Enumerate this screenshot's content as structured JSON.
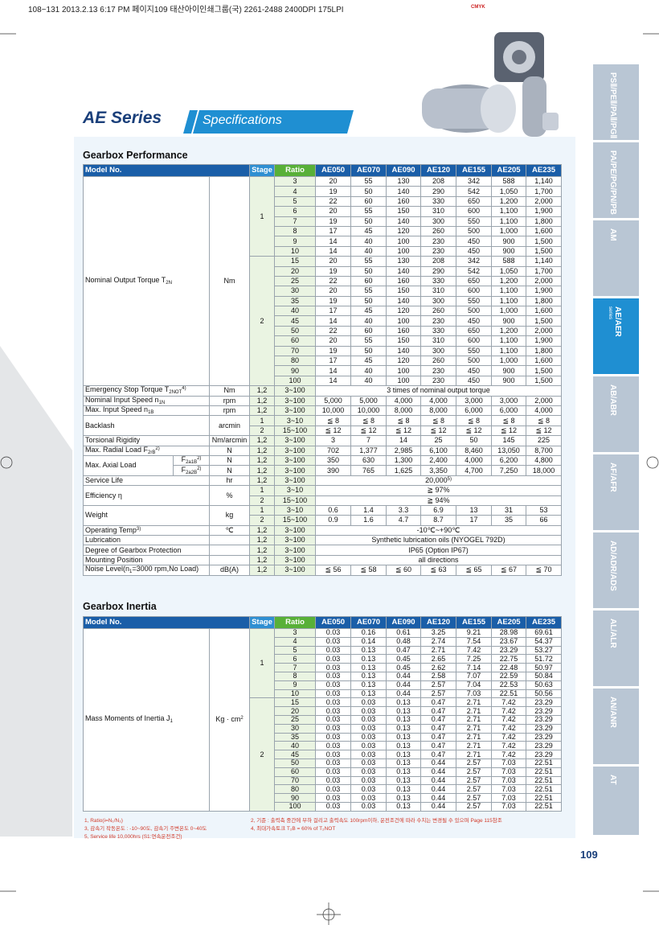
{
  "header": {
    "print_line": "108~131  2013.2.13 6:17 PM  페이지109  태산아이인쇄그룹(국) 2261-2488  2400DPI 175LPI",
    "cmyk": "CMYK",
    "series": "AE Series",
    "section": "Specifications"
  },
  "side_tabs": [
    {
      "label": "PSⅡ/PEⅡ/PAⅡ/PGⅡ"
    },
    {
      "label": "PA/PE/PG/PN/PB"
    },
    {
      "label": "AM"
    },
    {
      "label": "AE/AER",
      "sub": "series"
    },
    {
      "label": "AB/ABR"
    },
    {
      "label": "AF/AFR"
    },
    {
      "label": "AD/ADR/ADS"
    },
    {
      "label": "AL/ALR"
    },
    {
      "label": "AN/ANR"
    },
    {
      "label": "AT"
    }
  ],
  "performance": {
    "title": "Gearbox Performance",
    "headers": [
      "Model No.",
      "Stage",
      "Ratio",
      "AE050",
      "AE070",
      "AE090",
      "AE120",
      "AE155",
      "AE205",
      "AE235"
    ],
    "torque": {
      "label": {
        "text": "Nominal Output Torque T",
        "sub": "2N"
      },
      "unit": "Nm",
      "groups": [
        {
          "stage": "1",
          "rows": [
            {
              "ratio": "3",
              "values": [
                "20",
                "55",
                "130",
                "208",
                "342",
                "588",
                "1,140"
              ]
            },
            {
              "ratio": "4",
              "values": [
                "19",
                "50",
                "140",
                "290",
                "542",
                "1,050",
                "1,700"
              ]
            },
            {
              "ratio": "5",
              "values": [
                "22",
                "60",
                "160",
                "330",
                "650",
                "1,200",
                "2,000"
              ]
            },
            {
              "ratio": "6",
              "values": [
                "20",
                "55",
                "150",
                "310",
                "600",
                "1,100",
                "1,900"
              ]
            },
            {
              "ratio": "7",
              "values": [
                "19",
                "50",
                "140",
                "300",
                "550",
                "1,100",
                "1,800"
              ]
            },
            {
              "ratio": "8",
              "values": [
                "17",
                "45",
                "120",
                "260",
                "500",
                "1,000",
                "1,600"
              ]
            },
            {
              "ratio": "9",
              "values": [
                "14",
                "40",
                "100",
                "230",
                "450",
                "900",
                "1,500"
              ]
            },
            {
              "ratio": "10",
              "values": [
                "14",
                "40",
                "100",
                "230",
                "450",
                "900",
                "1,500"
              ]
            }
          ]
        },
        {
          "stage": "2",
          "rows": [
            {
              "ratio": "15",
              "values": [
                "20",
                "55",
                "130",
                "208",
                "342",
                "588",
                "1,140"
              ]
            },
            {
              "ratio": "20",
              "values": [
                "19",
                "50",
                "140",
                "290",
                "542",
                "1,050",
                "1,700"
              ]
            },
            {
              "ratio": "25",
              "values": [
                "22",
                "60",
                "160",
                "330",
                "650",
                "1,200",
                "2,000"
              ]
            },
            {
              "ratio": "30",
              "values": [
                "20",
                "55",
                "150",
                "310",
                "600",
                "1,100",
                "1,900"
              ]
            },
            {
              "ratio": "35",
              "values": [
                "19",
                "50",
                "140",
                "300",
                "550",
                "1,100",
                "1,800"
              ]
            },
            {
              "ratio": "40",
              "values": [
                "17",
                "45",
                "120",
                "260",
                "500",
                "1,000",
                "1,600"
              ]
            },
            {
              "ratio": "45",
              "values": [
                "14",
                "40",
                "100",
                "230",
                "450",
                "900",
                "1,500"
              ]
            },
            {
              "ratio": "50",
              "values": [
                "22",
                "60",
                "160",
                "330",
                "650",
                "1,200",
                "2,000"
              ]
            },
            {
              "ratio": "60",
              "values": [
                "20",
                "55",
                "150",
                "310",
                "600",
                "1,100",
                "1,900"
              ]
            },
            {
              "ratio": "70",
              "values": [
                "19",
                "50",
                "140",
                "300",
                "550",
                "1,100",
                "1,800"
              ]
            },
            {
              "ratio": "80",
              "values": [
                "17",
                "45",
                "120",
                "260",
                "500",
                "1,000",
                "1,600"
              ]
            },
            {
              "ratio": "90",
              "values": [
                "14",
                "40",
                "100",
                "230",
                "450",
                "900",
                "1,500"
              ]
            },
            {
              "ratio": "100",
              "values": [
                "14",
                "40",
                "100",
                "230",
                "450",
                "900",
                "1,500"
              ]
            }
          ]
        }
      ]
    },
    "rows": [
      {
        "label": {
          "text": "Emergency Stop Torque T",
          "sub": "2NOT",
          "sup": "4)"
        },
        "unit": "Nm",
        "lines": [
          {
            "stage": "1,2",
            "ratio": "3~100",
            "cells": [
              "3 times of nominal output torque"
            ]
          }
        ]
      },
      {
        "label": {
          "text": "Nominal Input Speed n",
          "sub": "1N"
        },
        "unit": "rpm",
        "lines": [
          {
            "stage": "1,2",
            "ratio": "3~100",
            "cells": [
              "5,000",
              "5,000",
              "4,000",
              "4,000",
              "3,000",
              "3,000",
              "2,000"
            ]
          }
        ]
      },
      {
        "label": {
          "text": "Max. Input Speed n",
          "sub": "1B"
        },
        "unit": "rpm",
        "lines": [
          {
            "stage": "1,2",
            "ratio": "3~100",
            "cells": [
              "10,000",
              "10,000",
              "8,000",
              "8,000",
              "6,000",
              "6,000",
              "4,000"
            ]
          }
        ]
      },
      {
        "label": "Backlash",
        "unit": "arcmin",
        "lines": [
          {
            "stage": "1",
            "ratio": "3~10",
            "cells": [
              "≦ 8",
              "≦ 8",
              "≦ 8",
              "≦ 8",
              "≦ 8",
              "≦ 8",
              "≦ 8"
            ]
          },
          {
            "stage": "2",
            "ratio": "15~100",
            "cells": [
              "≦ 12",
              "≦ 12",
              "≦ 12",
              "≦ 12",
              "≦ 12",
              "≦ 12",
              "≦ 12"
            ]
          }
        ]
      },
      {
        "label": "Torsional Rigidity",
        "unit": "Nm/arcmin",
        "lines": [
          {
            "stage": "1,2",
            "ratio": "3~100",
            "cells": [
              "3",
              "7",
              "14",
              "25",
              "50",
              "145",
              "225"
            ]
          }
        ]
      },
      {
        "label": {
          "text": "Max. Radial Load F",
          "sub": "2rB",
          "sup": "2)"
        },
        "unit": "N",
        "lines": [
          {
            "stage": "1,2",
            "ratio": "3~100",
            "cells": [
              "702",
              "1,377",
              "2,985",
              "6,100",
              "8,460",
              "13,050",
              "8,700"
            ]
          }
        ]
      },
      {
        "label": "Max. Axial Load",
        "lines": [
          {
            "sublabel": {
              "text": "F",
              "sub": "2a1B",
              "sup": "2)"
            },
            "unit": "N",
            "stage": "1,2",
            "ratio": "3~100",
            "cells": [
              "350",
              "630",
              "1,300",
              "2,400",
              "4,000",
              "6,200",
              "4,800"
            ]
          },
          {
            "sublabel": {
              "text": "F",
              "sub": "2a2B",
              "sup": "2)"
            },
            "unit": "N",
            "stage": "1,2",
            "ratio": "3~100",
            "cells": [
              "390",
              "765",
              "1,625",
              "3,350",
              "4,700",
              "7,250",
              "18,000"
            ]
          }
        ]
      },
      {
        "label": "Service Life",
        "unit": "hr",
        "lines": [
          {
            "stage": "1,2",
            "ratio": "3~100",
            "cells": [
              {
                "text": "20,000",
                "sup": "5)"
              }
            ]
          }
        ]
      },
      {
        "label": "Efficiency η",
        "unit": "%",
        "lines": [
          {
            "stage": "1",
            "ratio": "3~10",
            "cells": [
              "≧ 97%"
            ]
          },
          {
            "stage": "2",
            "ratio": "15~100",
            "cells": [
              "≧ 94%"
            ]
          }
        ]
      },
      {
        "label": "Weight",
        "unit": "kg",
        "lines": [
          {
            "stage": "1",
            "ratio": "3~10",
            "cells": [
              "0.6",
              "1.4",
              "3.3",
              "6.9",
              "13",
              "31",
              "53"
            ]
          },
          {
            "stage": "2",
            "ratio": "15~100",
            "cells": [
              "0.9",
              "1.6",
              "4.7",
              "8.7",
              "17",
              "35",
              "66"
            ]
          }
        ]
      },
      {
        "label": {
          "text": "Operating Temp",
          "sup": "3)"
        },
        "unit": "℃",
        "lines": [
          {
            "stage": "1,2",
            "ratio": "3~100",
            "cells": [
              "-10℃~+90℃"
            ]
          }
        ]
      },
      {
        "label": "Lubrication",
        "lines": [
          {
            "stage": "1,2",
            "ratio": "3~100",
            "cells": [
              "Synthetic lubrication oils (NYOGEL 792D)"
            ]
          }
        ]
      },
      {
        "label": "Degree of Gearbox Protection",
        "lines": [
          {
            "stage": "1,2",
            "ratio": "3~100",
            "cells": [
              "IP65 (Option IP67)"
            ]
          }
        ]
      },
      {
        "label": "Mounting Position",
        "lines": [
          {
            "stage": "1,2",
            "ratio": "3~100",
            "cells": [
              "all directions"
            ]
          }
        ]
      },
      {
        "label": {
          "text": "Noise Level(n",
          "sub": "1",
          "after": "=3000 rpm,No Load)"
        },
        "unit": "dB(A)",
        "lines": [
          {
            "stage": "1,2",
            "ratio": "3~100",
            "cells": [
              "≦ 56",
              "≦ 58",
              "≦ 60",
              "≦ 63",
              "≦ 65",
              "≦ 67",
              "≦ 70"
            ]
          }
        ]
      }
    ]
  },
  "inertia": {
    "title": "Gearbox Inertia",
    "headers": [
      "Model No.",
      "Stage",
      "Ratio",
      "AE050",
      "AE070",
      "AE090",
      "AE120",
      "AE155",
      "AE205",
      "AE235"
    ],
    "label": {
      "text": "Mass Moments of Inertia J",
      "sub": "1"
    },
    "unit": {
      "text": "Kg · cm",
      "sup": "2"
    },
    "groups": [
      {
        "stage": "1",
        "rows": [
          {
            "ratio": "3",
            "values": [
              "0.03",
              "0.16",
              "0.61",
              "3.25",
              "9.21",
              "28.98",
              "69.61"
            ]
          },
          {
            "ratio": "4",
            "values": [
              "0.03",
              "0.14",
              "0.48",
              "2.74",
              "7.54",
              "23.67",
              "54.37"
            ]
          },
          {
            "ratio": "5",
            "values": [
              "0.03",
              "0.13",
              "0.47",
              "2.71",
              "7.42",
              "23.29",
              "53.27"
            ]
          },
          {
            "ratio": "6",
            "values": [
              "0.03",
              "0.13",
              "0.45",
              "2.65",
              "7.25",
              "22.75",
              "51.72"
            ]
          },
          {
            "ratio": "7",
            "values": [
              "0.03",
              "0.13",
              "0.45",
              "2.62",
              "7.14",
              "22.48",
              "50.97"
            ]
          },
          {
            "ratio": "8",
            "values": [
              "0.03",
              "0.13",
              "0.44",
              "2.58",
              "7.07",
              "22.59",
              "50.84"
            ]
          },
          {
            "ratio": "9",
            "values": [
              "0.03",
              "0.13",
              "0.44",
              "2.57",
              "7.04",
              "22.53",
              "50.63"
            ]
          },
          {
            "ratio": "10",
            "values": [
              "0.03",
              "0.13",
              "0.44",
              "2.57",
              "7.03",
              "22.51",
              "50.56"
            ]
          }
        ]
      },
      {
        "stage": "2",
        "rows": [
          {
            "ratio": "15",
            "values": [
              "0.03",
              "0.03",
              "0.13",
              "0.47",
              "2.71",
              "7.42",
              "23.29"
            ]
          },
          {
            "ratio": "20",
            "values": [
              "0.03",
              "0.03",
              "0.13",
              "0.47",
              "2.71",
              "7.42",
              "23.29"
            ]
          },
          {
            "ratio": "25",
            "values": [
              "0.03",
              "0.03",
              "0.13",
              "0.47",
              "2.71",
              "7.42",
              "23.29"
            ]
          },
          {
            "ratio": "30",
            "values": [
              "0.03",
              "0.03",
              "0.13",
              "0.47",
              "2.71",
              "7.42",
              "23.29"
            ]
          },
          {
            "ratio": "35",
            "values": [
              "0.03",
              "0.03",
              "0.13",
              "0.47",
              "2.71",
              "7.42",
              "23.29"
            ]
          },
          {
            "ratio": "40",
            "values": [
              "0.03",
              "0.03",
              "0.13",
              "0.47",
              "2.71",
              "7.42",
              "23.29"
            ]
          },
          {
            "ratio": "45",
            "values": [
              "0.03",
              "0.03",
              "0.13",
              "0.47",
              "2.71",
              "7.42",
              "23.29"
            ]
          },
          {
            "ratio": "50",
            "values": [
              "0.03",
              "0.03",
              "0.13",
              "0.44",
              "2.57",
              "7.03",
              "22.51"
            ]
          },
          {
            "ratio": "60",
            "values": [
              "0.03",
              "0.03",
              "0.13",
              "0.44",
              "2.57",
              "7.03",
              "22.51"
            ]
          },
          {
            "ratio": "70",
            "values": [
              "0.03",
              "0.03",
              "0.13",
              "0.44",
              "2.57",
              "7.03",
              "22.51"
            ]
          },
          {
            "ratio": "80",
            "values": [
              "0.03",
              "0.03",
              "0.13",
              "0.44",
              "2.57",
              "7.03",
              "22.51"
            ]
          },
          {
            "ratio": "90",
            "values": [
              "0.03",
              "0.03",
              "0.13",
              "0.44",
              "2.57",
              "7.03",
              "22.51"
            ]
          },
          {
            "ratio": "100",
            "values": [
              "0.03",
              "0.03",
              "0.13",
              "0.44",
              "2.57",
              "7.03",
              "22.51"
            ]
          }
        ]
      }
    ]
  },
  "footnotes_left": [
    "1, Ratio(i=N₁/N₂)",
    "3, 감속기 작동온도 : -10~90도, 감속기 주변온도 0~40도",
    "5, Service life 10,000hrs (S1:연속운전조건)"
  ],
  "footnotes_right": [
    "2, 기준 : 출력축 중간에 부하 걸리고 출력속도 100rpm이하, 운전조건에 따라 수치는 변경될 수 있으며 Page 115참조",
    "4, 최대가속토크 T₂B = 60% of T₂NOT"
  ],
  "page_number": "109"
}
